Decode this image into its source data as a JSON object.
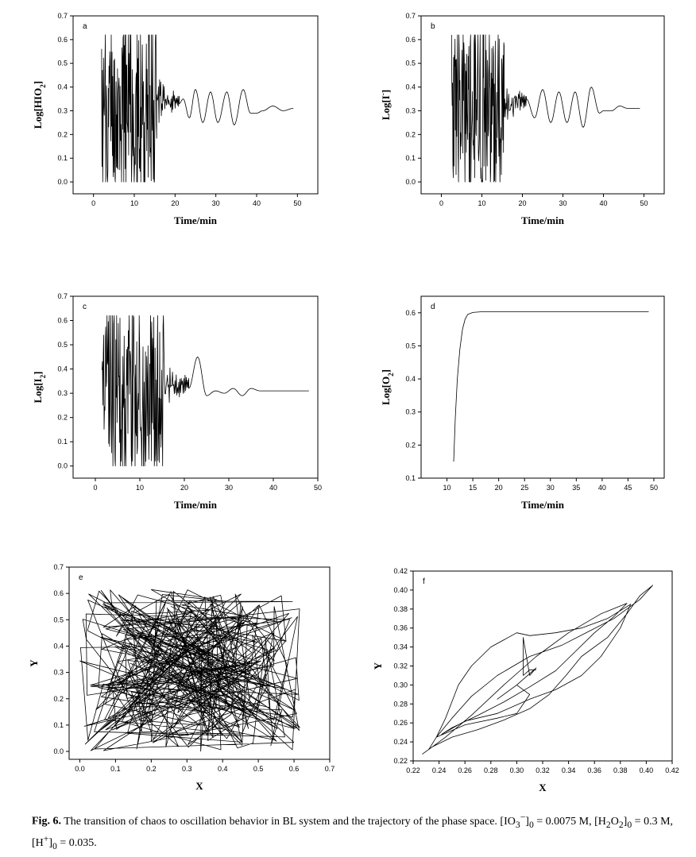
{
  "figure": {
    "caption_label": "Fig. 6.",
    "caption_text_1": "The transition of chaos to oscillation behavior in BL system and the trajectory of the phase space. [IO",
    "caption_text_2": "]",
    "caption_text_3": " = 0.0075 M, [H",
    "caption_text_4": "O",
    "caption_text_5": "]",
    "caption_text_6": " = 0.3 M, [H",
    "caption_text_7": "]",
    "caption_text_8": " = 0.035."
  },
  "chart_data": [
    {
      "id": "a",
      "panel_label": "a",
      "type": "line",
      "xlabel": "Time/min",
      "ylabel_html": "Log[HIO<tspan baseline-shift='sub' font-size='9'>2</tspan>]",
      "xlim": [
        -5,
        55
      ],
      "ylim": [
        -0.05,
        0.7
      ],
      "xticks": [
        0,
        10,
        20,
        30,
        40,
        50
      ],
      "yticks": [
        0.0,
        0.1,
        0.2,
        0.3,
        0.4,
        0.5,
        0.6,
        0.7
      ],
      "ytick_labels": [
        "0.0",
        "0.1",
        "0.2",
        "0.3",
        "0.4",
        "0.5",
        "0.6",
        "0.7"
      ],
      "series": [
        {
          "chaos": {
            "x0": 2,
            "x1": 15.5,
            "n": 150,
            "lo": 0.0,
            "hi": 0.62,
            "seed": 11
          },
          "transition": {
            "x0": 15.5,
            "x1": 21
          },
          "osc": [
            [
              21,
              0.33
            ],
            [
              22,
              0.35
            ],
            [
              23.5,
              0.27
            ],
            [
              25,
              0.39
            ],
            [
              26.8,
              0.25
            ],
            [
              28.7,
              0.38
            ],
            [
              30.5,
              0.25
            ],
            [
              32.7,
              0.38
            ],
            [
              34.5,
              0.24
            ],
            [
              36.7,
              0.39
            ],
            [
              38.5,
              0.29
            ],
            [
              40,
              0.29
            ],
            [
              41.5,
              0.3
            ],
            [
              44,
              0.32
            ],
            [
              46.5,
              0.3
            ],
            [
              49,
              0.31
            ]
          ]
        }
      ]
    },
    {
      "id": "b",
      "panel_label": "b",
      "type": "line",
      "xlabel": "Time/min",
      "ylabel_html": "Log[I<tspan baseline-shift='super' font-size='9'>-</tspan>]",
      "xlim": [
        -5,
        55
      ],
      "ylim": [
        -0.05,
        0.7
      ],
      "xticks": [
        0,
        10,
        20,
        30,
        40,
        50
      ],
      "yticks": [
        0.0,
        0.1,
        0.2,
        0.3,
        0.4,
        0.5,
        0.6,
        0.7
      ],
      "ytick_labels": [
        "0.0",
        "0.1",
        "0.2",
        "0.3",
        "0.4",
        "0.5",
        "0.6",
        "0.7"
      ],
      "series": [
        {
          "chaos": {
            "x0": 2.5,
            "x1": 15.5,
            "n": 150,
            "lo": 0.0,
            "hi": 0.62,
            "seed": 23
          },
          "transition": {
            "x0": 15.5,
            "x1": 21
          },
          "osc": [
            [
              21,
              0.35
            ],
            [
              23,
              0.27
            ],
            [
              25,
              0.39
            ],
            [
              27,
              0.25
            ],
            [
              29,
              0.38
            ],
            [
              31,
              0.25
            ],
            [
              33,
              0.38
            ],
            [
              35,
              0.23
            ],
            [
              37,
              0.4
            ],
            [
              39,
              0.29
            ],
            [
              40,
              0.3
            ],
            [
              42,
              0.3
            ],
            [
              44,
              0.32
            ],
            [
              46,
              0.31
            ],
            [
              49,
              0.31
            ]
          ]
        }
      ]
    },
    {
      "id": "c",
      "panel_label": "c",
      "type": "line",
      "xlabel": "Time/min",
      "ylabel_html": "Log[I<tspan baseline-shift='sub' font-size='9'>2</tspan>]",
      "xlim": [
        -5,
        50
      ],
      "ylim": [
        -0.05,
        0.7
      ],
      "xticks": [
        0,
        10,
        20,
        30,
        40,
        50
      ],
      "yticks": [
        0.0,
        0.1,
        0.2,
        0.3,
        0.4,
        0.5,
        0.6,
        0.7
      ],
      "ytick_labels": [
        "0.0",
        "0.1",
        "0.2",
        "0.3",
        "0.4",
        "0.5",
        "0.6",
        "0.7"
      ],
      "series": [
        {
          "chaos": {
            "x0": 1.5,
            "x1": 15.5,
            "n": 150,
            "lo": 0.0,
            "hi": 0.62,
            "seed": 37
          },
          "transition": {
            "x0": 15.5,
            "x1": 21
          },
          "osc": [
            [
              21,
              0.32
            ],
            [
              23,
              0.45
            ],
            [
              25,
              0.29
            ],
            [
              27,
              0.31
            ],
            [
              29,
              0.3
            ],
            [
              31,
              0.32
            ],
            [
              33,
              0.29
            ],
            [
              35,
              0.32
            ],
            [
              37,
              0.31
            ],
            [
              40,
              0.31
            ],
            [
              48,
              0.31
            ]
          ]
        }
      ]
    },
    {
      "id": "d",
      "panel_label": "d",
      "type": "line",
      "xlabel": "Time/min",
      "ylabel_html": "Log[O<tspan baseline-shift='sub' font-size='9'>2</tspan>]",
      "xlim": [
        5,
        52
      ],
      "ylim": [
        0.1,
        0.65
      ],
      "xticks": [
        10,
        15,
        20,
        25,
        30,
        35,
        40,
        45,
        50
      ],
      "yticks": [
        0.1,
        0.2,
        0.3,
        0.4,
        0.5,
        0.6
      ],
      "ytick_labels": [
        "0.1",
        "0.2",
        "0.3",
        "0.4",
        "0.5",
        "0.6"
      ],
      "series": [
        {
          "points": [
            [
              11.3,
              0.15
            ],
            [
              11.6,
              0.28
            ],
            [
              12,
              0.4
            ],
            [
              12.5,
              0.49
            ],
            [
              13,
              0.55
            ],
            [
              13.5,
              0.58
            ],
            [
              14,
              0.595
            ],
            [
              15,
              0.601
            ],
            [
              16.5,
              0.603
            ],
            [
              20,
              0.603
            ],
            [
              49,
              0.603
            ]
          ]
        }
      ]
    },
    {
      "id": "e",
      "panel_label": "e",
      "type": "scatter",
      "xlabel": "X",
      "ylabel_html": "Y",
      "xlim": [
        -0.03,
        0.7
      ],
      "ylim": [
        -0.03,
        0.7
      ],
      "xticks": [
        0.0,
        0.1,
        0.2,
        0.3,
        0.4,
        0.5,
        0.6,
        0.7
      ],
      "yticks": [
        0.0,
        0.1,
        0.2,
        0.3,
        0.4,
        0.5,
        0.6,
        0.7
      ],
      "xtick_labels": [
        "0.0",
        "0.1",
        "0.2",
        "0.3",
        "0.4",
        "0.5",
        "0.6",
        "0.7"
      ],
      "ytick_labels": [
        "0.0",
        "0.1",
        "0.2",
        "0.3",
        "0.4",
        "0.5",
        "0.6",
        "0.7"
      ],
      "series": [
        {
          "random": {
            "n": 320,
            "lo": 0.0,
            "hi": 0.62,
            "seed": 5
          }
        }
      ]
    },
    {
      "id": "f",
      "panel_label": "f",
      "type": "scatter",
      "xlabel": "X",
      "ylabel_html": "Y",
      "xlim": [
        0.22,
        0.42
      ],
      "ylim": [
        0.22,
        0.42
      ],
      "xticks": [
        0.22,
        0.24,
        0.26,
        0.28,
        0.3,
        0.32,
        0.34,
        0.36,
        0.38,
        0.4,
        0.42
      ],
      "yticks": [
        0.22,
        0.24,
        0.26,
        0.28,
        0.3,
        0.32,
        0.34,
        0.36,
        0.38,
        0.4,
        0.42
      ],
      "xtick_labels": [
        "0.22",
        "0.24",
        "0.26",
        "0.28",
        "0.30",
        "0.32",
        "0.34",
        "0.36",
        "0.38",
        "0.40",
        "0.42"
      ],
      "ytick_labels": [
        "0.22",
        "0.24",
        "0.26",
        "0.28",
        "0.30",
        "0.32",
        "0.34",
        "0.36",
        "0.38",
        "0.40",
        "0.42"
      ],
      "series": [
        {
          "points": [
            [
              0.227,
              0.227
            ],
            [
              0.235,
              0.235
            ],
            [
              0.25,
              0.245
            ],
            [
              0.27,
              0.253
            ],
            [
              0.29,
              0.263
            ],
            [
              0.31,
              0.275
            ],
            [
              0.325,
              0.29
            ],
            [
              0.338,
              0.31
            ],
            [
              0.35,
              0.33
            ],
            [
              0.37,
              0.35
            ],
            [
              0.385,
              0.375
            ],
            [
              0.395,
              0.394
            ],
            [
              0.405,
              0.405
            ],
            [
              0.395,
              0.39
            ],
            [
              0.375,
              0.37
            ],
            [
              0.355,
              0.356
            ],
            [
              0.335,
              0.342
            ],
            [
              0.31,
              0.33
            ],
            [
              0.285,
              0.31
            ],
            [
              0.265,
              0.288
            ],
            [
              0.25,
              0.265
            ],
            [
              0.238,
              0.245
            ],
            [
              0.232,
              0.232
            ],
            [
              0.245,
              0.245
            ],
            [
              0.265,
              0.268
            ],
            [
              0.29,
              0.3
            ],
            [
              0.315,
              0.33
            ],
            [
              0.34,
              0.355
            ],
            [
              0.365,
              0.375
            ],
            [
              0.385,
              0.386
            ],
            [
              0.375,
              0.372
            ],
            [
              0.36,
              0.355
            ],
            [
              0.345,
              0.335
            ],
            [
              0.33,
              0.315
            ],
            [
              0.31,
              0.298
            ],
            [
              0.29,
              0.282
            ],
            [
              0.27,
              0.268
            ],
            [
              0.25,
              0.255
            ],
            [
              0.242,
              0.248
            ],
            [
              0.26,
              0.262
            ],
            [
              0.285,
              0.27
            ],
            [
              0.31,
              0.285
            ],
            [
              0.33,
              0.295
            ],
            [
              0.35,
              0.31
            ],
            [
              0.365,
              0.33
            ],
            [
              0.38,
              0.36
            ],
            [
              0.388,
              0.385
            ],
            [
              0.37,
              0.37
            ],
            [
              0.35,
              0.36
            ],
            [
              0.33,
              0.355
            ],
            [
              0.31,
              0.352
            ],
            [
              0.3,
              0.355
            ],
            [
              0.28,
              0.34
            ],
            [
              0.265,
              0.32
            ],
            [
              0.255,
              0.3
            ],
            [
              0.245,
              0.265
            ],
            [
              0.238,
              0.245
            ],
            [
              0.26,
              0.258
            ],
            [
              0.285,
              0.265
            ],
            [
              0.3,
              0.27
            ],
            [
              0.31,
              0.29
            ],
            [
              0.3,
              0.3
            ],
            [
              0.285,
              0.285
            ],
            [
              0.3,
              0.3
            ],
            [
              0.315,
              0.318
            ],
            [
              0.31,
              0.31
            ],
            [
              0.305,
              0.35
            ],
            [
              0.305,
              0.31
            ],
            [
              0.31,
              0.316
            ],
            [
              0.315,
              0.316
            ]
          ]
        }
      ]
    }
  ]
}
